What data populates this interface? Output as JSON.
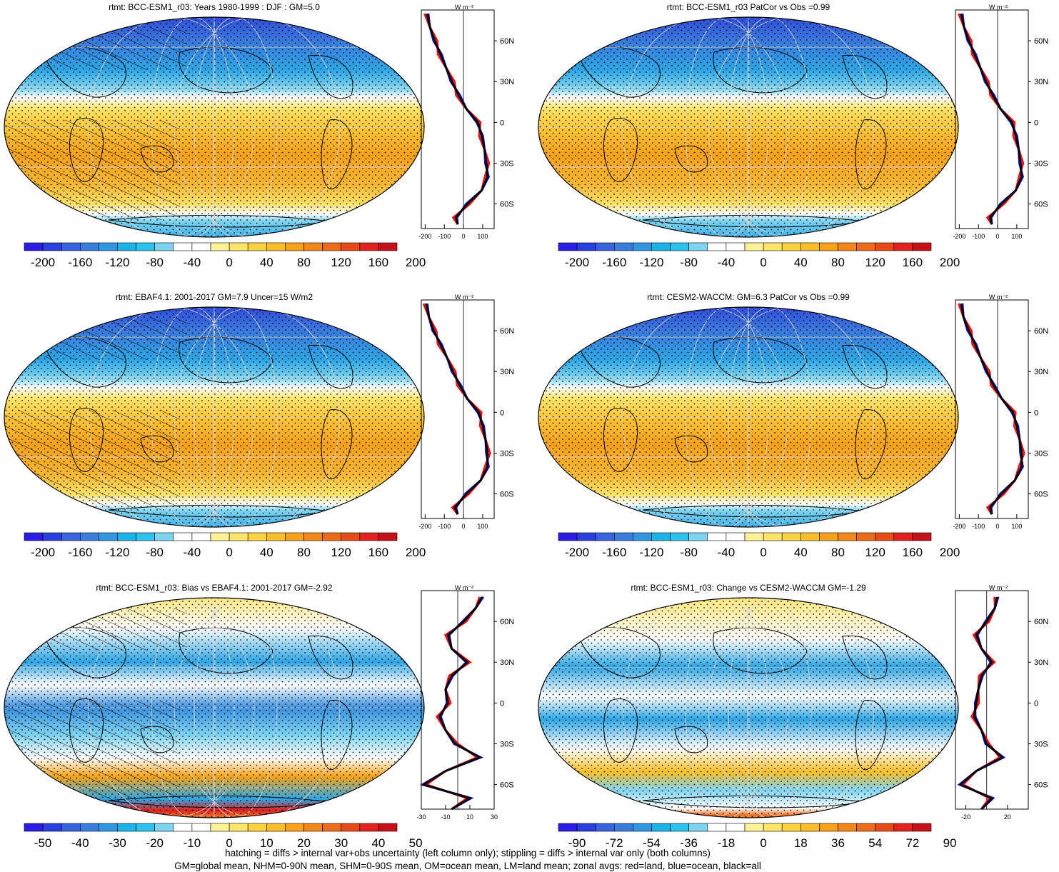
{
  "panels": [
    {
      "title": "rtmt: BCC-ESM1_r03: Years 1980-1999 : DJF : GM=5.0",
      "kind": "mean",
      "hatch": true,
      "stipple": true
    },
    {
      "title": "rtmt: BCC-ESM1_r03 PatCor vs Obs =0.99",
      "kind": "mean",
      "hatch": false,
      "stipple": true
    },
    {
      "title": "rtmt: EBAF4.1: 2001-2017 GM=7.9 Uncer=15 W/m2",
      "kind": "mean",
      "hatch": true,
      "stipple": true
    },
    {
      "title": "rtmt: CESM2-WACCM: GM=6.3 PatCor vs Obs =0.99",
      "kind": "mean",
      "hatch": false,
      "stipple": true
    },
    {
      "title": "rtmt: BCC-ESM1_r03: Bias vs EBAF4.1: 2001-2017 GM=-2.92",
      "kind": "bias",
      "hatch": true,
      "stipple": true
    },
    {
      "title": "rtmt: BCC-ESM1_r03: Change vs CESM2-WACCM GM=-1.29",
      "kind": "change",
      "hatch": false,
      "stipple": true
    }
  ],
  "colorbars": {
    "mean": {
      "labels": [
        "-200",
        "-160",
        "-120",
        "-80",
        "-40",
        "0",
        "40",
        "80",
        "120",
        "160",
        "200"
      ]
    },
    "bias": {
      "labels": [
        "-50",
        "-40",
        "-30",
        "-20",
        "-10",
        "0",
        "10",
        "20",
        "30",
        "40",
        "50"
      ]
    },
    "change": {
      "labels": [
        "-90",
        "-72",
        "-54",
        "-36",
        "-18",
        "0",
        "18",
        "36",
        "54",
        "72",
        "90"
      ]
    },
    "colors": [
      "#2b1ce6",
      "#2a40e0",
      "#3863de",
      "#3b7ddf",
      "#2f98e0",
      "#1ab4e6",
      "#2cc3ec",
      "#7ed4f0",
      "#ffffff",
      "#ffffff",
      "#fff19a",
      "#fde46a",
      "#fbd23f",
      "#f9bf28",
      "#f6a31a",
      "#f2881a",
      "#ee6b1a",
      "#e94a1c",
      "#e2221e",
      "#c8101a"
    ]
  },
  "zonal": {
    "unit": "W m⁻²",
    "lat_labels": [
      "60N",
      "30N",
      "0",
      "30S",
      "60S"
    ],
    "mean_x_ticks": [
      "-200",
      "-100",
      "0",
      "100"
    ],
    "bias_x_ticks": [
      "-30",
      "-10",
      "10",
      "30"
    ],
    "change_x_ticks": [
      "-20",
      "20"
    ],
    "series_colors": {
      "land": "#e8141a",
      "ocean": "#1418d2",
      "all": "#000000"
    }
  },
  "chart_data": [
    {
      "type": "heatmap",
      "title": "rtmt: BCC-ESM1_r03: Years 1980-1999 : DJF : GM=5.0",
      "colorbar_range": [
        -200,
        200
      ],
      "global_mean": 5.0,
      "zonal_mean": {
        "lat": [
          80,
          70,
          60,
          50,
          40,
          30,
          20,
          10,
          0,
          -10,
          -20,
          -30,
          -40,
          -50,
          -60,
          -70,
          -75
        ],
        "all": [
          -190,
          -175,
          -150,
          -120,
          -90,
          -60,
          -25,
          15,
          75,
          95,
          110,
          120,
          125,
          95,
          20,
          -40,
          -30
        ]
      }
    },
    {
      "type": "heatmap",
      "title": "rtmt: BCC-ESM1_r03 PatCor vs Obs =0.99",
      "colorbar_range": [
        -200,
        200
      ],
      "pattern_correlation": 0.99,
      "zonal_mean": {
        "lat": [
          80,
          70,
          60,
          50,
          40,
          30,
          20,
          10,
          0,
          -10,
          -20,
          -30,
          -40,
          -50,
          -60,
          -70,
          -75
        ],
        "all": [
          -190,
          -175,
          -150,
          -120,
          -90,
          -60,
          -25,
          15,
          75,
          95,
          110,
          120,
          125,
          95,
          20,
          -40,
          -30
        ]
      }
    },
    {
      "type": "heatmap",
      "title": "rtmt: EBAF4.1: 2001-2017 GM=7.9 Uncer=15 W/m2",
      "colorbar_range": [
        -200,
        200
      ],
      "global_mean": 7.9,
      "uncertainty": 15,
      "zonal_mean": {
        "lat": [
          80,
          70,
          60,
          50,
          40,
          30,
          20,
          10,
          0,
          -10,
          -20,
          -30,
          -40,
          -50,
          -60,
          -70,
          -75
        ],
        "all": [
          -195,
          -180,
          -155,
          -120,
          -85,
          -55,
          -20,
          20,
          80,
          100,
          115,
          125,
          125,
          90,
          15,
          -45,
          -30
        ]
      }
    },
    {
      "type": "heatmap",
      "title": "rtmt: CESM2-WACCM: GM=6.3 PatCor vs Obs =0.99",
      "colorbar_range": [
        -200,
        200
      ],
      "global_mean": 6.3,
      "pattern_correlation": 0.99,
      "zonal_mean": {
        "lat": [
          80,
          70,
          60,
          50,
          40,
          30,
          20,
          10,
          0,
          -10,
          -20,
          -30,
          -40,
          -50,
          -60,
          -70,
          -75
        ],
        "all": [
          -190,
          -178,
          -150,
          -118,
          -88,
          -55,
          -22,
          22,
          80,
          100,
          115,
          125,
          125,
          90,
          20,
          -40,
          -30
        ]
      }
    },
    {
      "type": "heatmap",
      "title": "rtmt: BCC-ESM1_r03: Bias vs EBAF4.1: 2001-2017 GM=-2.92",
      "colorbar_range": [
        -50,
        50
      ],
      "global_mean": -2.92,
      "zonal_mean": {
        "lat": [
          78,
          70,
          60,
          50,
          40,
          30,
          20,
          10,
          0,
          -10,
          -20,
          -30,
          -40,
          -50,
          -60,
          -70,
          -78
        ],
        "all": [
          20,
          15,
          5,
          -8,
          -5,
          8,
          -5,
          -10,
          -8,
          -15,
          -10,
          -2,
          18,
          -10,
          -28,
          10,
          -5
        ]
      }
    },
    {
      "type": "heatmap",
      "title": "rtmt: BCC-ESM1_r03: Change vs CESM2-WACCM GM=-1.29",
      "colorbar_range": [
        -90,
        90
      ],
      "global_mean": -1.29,
      "zonal_mean": {
        "lat": [
          78,
          70,
          60,
          50,
          40,
          30,
          20,
          10,
          0,
          -10,
          -20,
          -30,
          -40,
          -50,
          -60,
          -70,
          -78
        ],
        "all": [
          10,
          8,
          0,
          -10,
          -5,
          5,
          -5,
          -8,
          -10,
          -12,
          -5,
          0,
          15,
          -10,
          -25,
          5,
          -5
        ]
      }
    }
  ],
  "notes": {
    "line1": "hatching = diffs > internal var+obs uncertainty (left column only); stippling = diffs > internal var only (both columns)",
    "line2": "GM=global mean, NHM=0-90N mean, SHM=0-90S mean, OM=ocean mean, LM=land mean; zonal avgs: red=land, blue=ocean, black=all"
  }
}
